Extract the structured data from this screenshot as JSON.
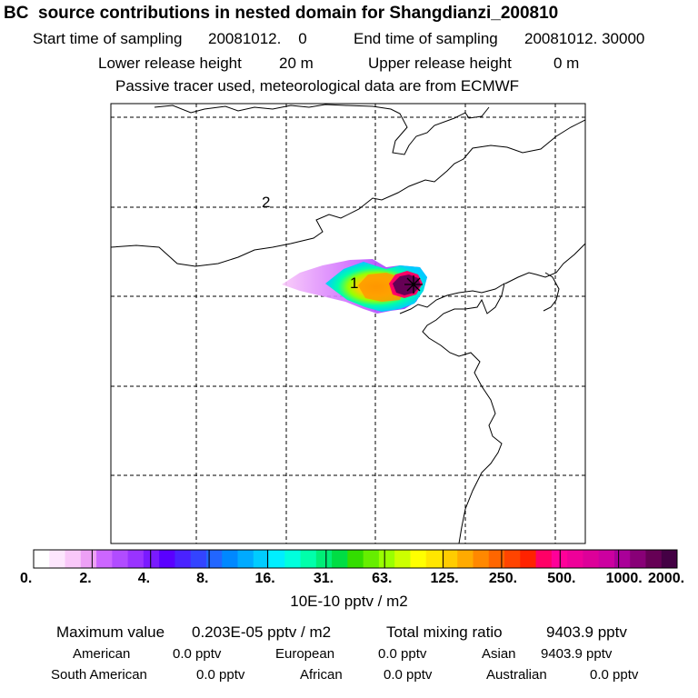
{
  "header": {
    "title": "BC  source contributions in nested domain for Shangdianzi_200810",
    "start_label": "Start time of sampling",
    "start_value": "20081012.    0",
    "end_label": "End time of sampling",
    "end_value": "20081012. 30000",
    "lower_label": "Lower release height",
    "lower_value": "20 m",
    "upper_label": "Upper release height",
    "upper_value": "0 m",
    "note": "Passive tracer used, meteorological data are from ECMWF"
  },
  "map": {
    "markers": [
      {
        "label": "1",
        "kind": "release-point"
      },
      {
        "label": "2",
        "kind": "region-marker"
      }
    ],
    "receptor_symbol": "star"
  },
  "colorbar": {
    "ticks": [
      "0.",
      "2.",
      "4.",
      "8.",
      "16.",
      "31.",
      "63.",
      "125.",
      "250.",
      "500.",
      "1000.",
      "2000."
    ],
    "colors": [
      "#ffffff",
      "#fde6fd",
      "#f9c8f9",
      "#eda0f5",
      "#cc66ff",
      "#b14cff",
      "#9933ff",
      "#7a1aff",
      "#5a00ff",
      "#4a22ff",
      "#3344ff",
      "#2266ff",
      "#0088ff",
      "#00aaff",
      "#00ccff",
      "#00eeff",
      "#00ffdd",
      "#00ffaa",
      "#00ee77",
      "#00dd44",
      "#33dd00",
      "#66ee00",
      "#99ff00",
      "#ccff00",
      "#ffff00",
      "#ffe600",
      "#ffcc00",
      "#ffaa00",
      "#ff8800",
      "#ff6600",
      "#ff4400",
      "#ff2200",
      "#ff0066",
      "#ff0099",
      "#ee0099",
      "#dd0099",
      "#cc00a0",
      "#aa0099",
      "#880077",
      "#660055",
      "#440044"
    ],
    "unit": "10E-10 pptv / m2"
  },
  "footer": {
    "max_label": "Maximum value",
    "max_value": "0.203E-05 pptv / m2",
    "total_label": "Total mixing ratio",
    "total_value": "9403.9 pptv",
    "sources": [
      {
        "name": "American",
        "value": "0.0 pptv"
      },
      {
        "name": "European",
        "value": "0.0 pptv"
      },
      {
        "name": "Asian",
        "value": "9403.9 pptv"
      },
      {
        "name": "South American",
        "value": "0.0 pptv"
      },
      {
        "name": "African",
        "value": "0.0 pptv"
      },
      {
        "name": "Australian",
        "value": "0.0 pptv"
      }
    ]
  }
}
